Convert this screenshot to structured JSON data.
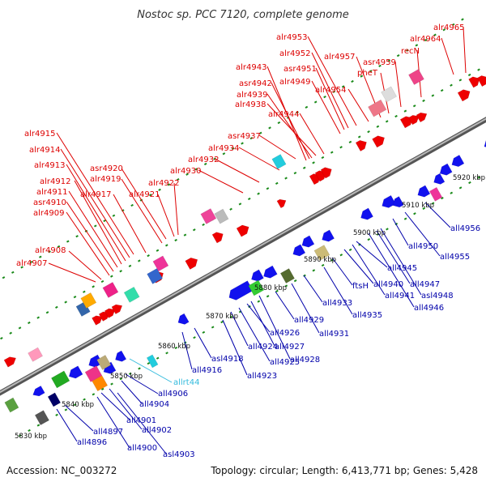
{
  "title": "Nostoc sp. PCC 7120, complete genome",
  "footer": {
    "accession": "Accession: NC_003272",
    "topology": "Topology: circular; Length: 6,413,771 bp; Genes: 5,428"
  },
  "colors": {
    "forward_label": "#dd0000",
    "reverse_label": "#0000aa",
    "rna_label": "#33bbdd",
    "backbone": "#7a7a7a",
    "tick": "#1a8a1a"
  },
  "scale_labels": [
    "5830 kbp",
    "5840 kbp",
    "5850 kbp",
    "5860 kbp",
    "5870 kbp",
    "5880 kbp",
    "5890 kbp",
    "5900 kbp",
    "5910 kbp",
    "5920 kbp"
  ],
  "forward_genes": [
    "alr4907",
    "alr4908",
    "alr4909",
    "asr4910",
    "alr4911",
    "alr4912",
    "alr4913",
    "alr4914",
    "alr4915",
    "alr4917",
    "alr4919",
    "asr4920",
    "alr4921",
    "alr4922",
    "alr4930",
    "alr4932",
    "alr4934",
    "asr4937",
    "alr4938",
    "alr4939",
    "asr4942",
    "alr4943",
    "alr4944",
    "alr4949",
    "asr4951",
    "alr4952",
    "alr4953",
    "alr4954",
    "alr4957",
    "pheT",
    "asr4959",
    "recN",
    "alr4964",
    "alr4965"
  ],
  "reverse_genes": [
    "all4896",
    "all4897",
    "all4900",
    "all4901",
    "all4902",
    "asl4903",
    "all4904",
    "all4906",
    "all4916",
    "asl4918",
    "all4923",
    "all4924",
    "all4925",
    "all4926",
    "all4927",
    "all4928",
    "all4929",
    "all4931",
    "all4933",
    "all4935",
    "ftsH",
    "all4940",
    "all4941",
    "all4945",
    "all4946",
    "all4947",
    "asl4948",
    "all4950",
    "all4955",
    "all4956"
  ],
  "rna_genes": [
    "allrt44"
  ]
}
